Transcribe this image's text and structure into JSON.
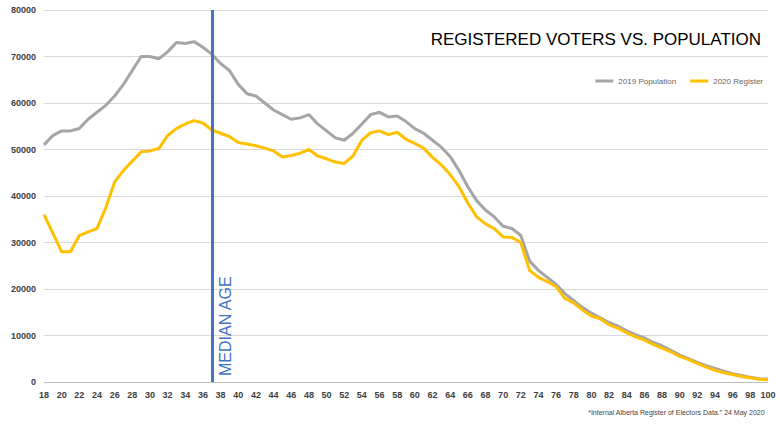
{
  "chart_data": {
    "type": "line",
    "title": "REGISTERED VOTERS VS. POPULATION",
    "footnote": "*Internal Alberta Register of Electors Data.\" 24 May 2020",
    "x": [
      18,
      19,
      20,
      21,
      22,
      23,
      24,
      25,
      26,
      27,
      28,
      29,
      30,
      31,
      32,
      33,
      34,
      35,
      36,
      37,
      38,
      39,
      40,
      41,
      42,
      43,
      44,
      45,
      46,
      47,
      48,
      49,
      50,
      51,
      52,
      53,
      54,
      55,
      56,
      57,
      58,
      59,
      60,
      61,
      62,
      63,
      64,
      65,
      66,
      67,
      68,
      69,
      70,
      71,
      72,
      73,
      74,
      75,
      76,
      77,
      78,
      79,
      80,
      81,
      82,
      83,
      84,
      85,
      86,
      87,
      88,
      89,
      90,
      91,
      92,
      93,
      94,
      95,
      96,
      97,
      98,
      99,
      100
    ],
    "series": [
      {
        "name": "2019 Population",
        "color": "#a5a5a5",
        "values": [
          51000,
          53000,
          54000,
          54000,
          54500,
          56500,
          58000,
          59500,
          61500,
          64000,
          67000,
          70000,
          70000,
          69500,
          71000,
          73000,
          72800,
          73200,
          72000,
          70500,
          68500,
          67000,
          64000,
          62000,
          61500,
          60000,
          58500,
          57500,
          56500,
          56800,
          57500,
          55500,
          54000,
          52500,
          52000,
          53500,
          55500,
          57500,
          58000,
          57000,
          57200,
          56000,
          54500,
          53500,
          52000,
          50500,
          48500,
          45500,
          42000,
          39000,
          37000,
          35500,
          33500,
          33000,
          31500,
          26000,
          24000,
          22500,
          21000,
          19000,
          17500,
          16000,
          14800,
          13800,
          12800,
          12000,
          11000,
          10200,
          9500,
          8500,
          7800,
          6800,
          5800,
          5000,
          4200,
          3500,
          2900,
          2300,
          1800,
          1400,
          1000,
          700,
          600
        ]
      },
      {
        "name": "2020 Register",
        "color": "#ffc000",
        "values": [
          36000,
          32000,
          28000,
          28000,
          31500,
          32300,
          33000,
          37500,
          43000,
          45500,
          47500,
          49500,
          49700,
          50200,
          53000,
          54500,
          55500,
          56200,
          55700,
          54200,
          53500,
          52800,
          51500,
          51200,
          50800,
          50300,
          49700,
          48400,
          48700,
          49200,
          50000,
          48600,
          48000,
          47300,
          47000,
          48600,
          52000,
          53600,
          54000,
          53200,
          53700,
          52200,
          51300,
          50300,
          48300,
          46700,
          44600,
          42000,
          38500,
          35500,
          34000,
          33000,
          31200,
          31100,
          30000,
          24000,
          22500,
          21600,
          20500,
          18000,
          17000,
          15500,
          14200,
          13600,
          12300,
          11600,
          10600,
          9700,
          9000,
          8100,
          7300,
          6500,
          5500,
          4800,
          4000,
          3200,
          2500,
          2000,
          1600,
          1200,
          900,
          600,
          500
        ]
      }
    ],
    "annotations": [
      {
        "text": "MEDIAN AGE",
        "x": 37,
        "color": "#4472c4"
      }
    ],
    "xlim": [
      18,
      100
    ],
    "xticks": [
      18,
      20,
      22,
      24,
      26,
      28,
      30,
      32,
      34,
      36,
      38,
      40,
      42,
      44,
      46,
      48,
      50,
      52,
      54,
      56,
      58,
      60,
      62,
      64,
      66,
      68,
      70,
      72,
      74,
      76,
      78,
      80,
      82,
      84,
      86,
      88,
      90,
      92,
      94,
      96,
      98,
      100
    ],
    "ylim": [
      0,
      80000
    ],
    "yticks": [
      0,
      10000,
      20000,
      30000,
      40000,
      50000,
      60000,
      70000,
      80000
    ],
    "grid": true,
    "legend": "top-right"
  }
}
